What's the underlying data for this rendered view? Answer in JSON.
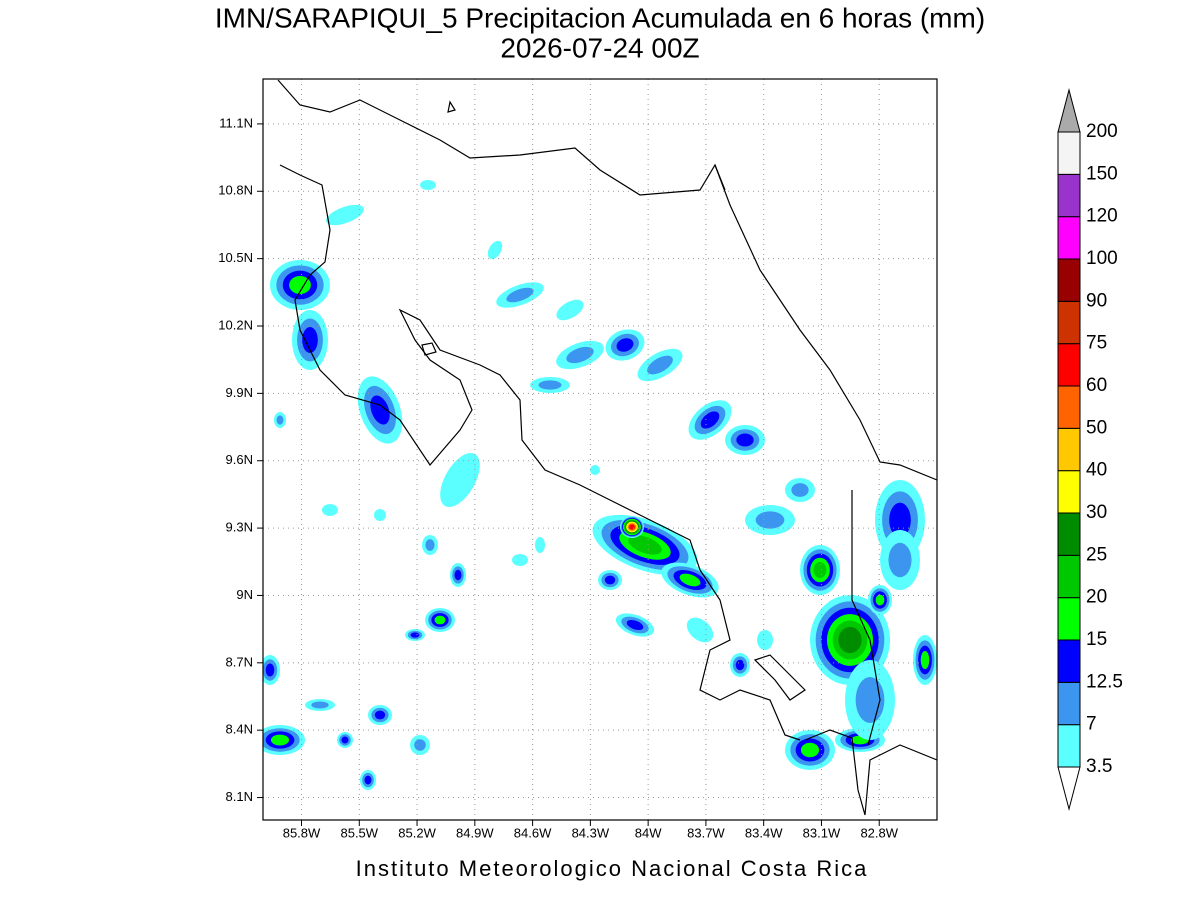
{
  "map": {
    "title": "IMN/SARAPIQUI_5 Precipitacion Acumulada en 6 horas (mm)",
    "subtitle": "2026-07-24 00Z",
    "credit": "Instituto Meteorologico Nacional Costa Rica",
    "lon_range": [
      -86.0,
      -82.5
    ],
    "lat_range": [
      8.0,
      11.3
    ],
    "lat_ticks": [
      {
        "value": 8.1,
        "label": "8.1N"
      },
      {
        "value": 8.4,
        "label": "8.4N"
      },
      {
        "value": 8.7,
        "label": "8.7N"
      },
      {
        "value": 9.0,
        "label": "9N"
      },
      {
        "value": 9.3,
        "label": "9.3N"
      },
      {
        "value": 9.6,
        "label": "9.6N"
      },
      {
        "value": 9.9,
        "label": "9.9N"
      },
      {
        "value": 10.2,
        "label": "10.2N"
      },
      {
        "value": 10.5,
        "label": "10.5N"
      },
      {
        "value": 10.8,
        "label": "10.8N"
      },
      {
        "value": 11.1,
        "label": "11.1N"
      }
    ],
    "lon_ticks": [
      {
        "value": -85.8,
        "label": "85.8W"
      },
      {
        "value": -85.5,
        "label": "85.5W"
      },
      {
        "value": -85.2,
        "label": "85.2W"
      },
      {
        "value": -84.9,
        "label": "84.9W"
      },
      {
        "value": -84.6,
        "label": "84.6W"
      },
      {
        "value": -84.3,
        "label": "84.3W"
      },
      {
        "value": -84.0,
        "label": "84W"
      },
      {
        "value": -83.7,
        "label": "83.7W"
      },
      {
        "value": -83.4,
        "label": "83.4W"
      },
      {
        "value": -83.1,
        "label": "83.1W"
      },
      {
        "value": -82.8,
        "label": "82.8W"
      }
    ],
    "grid": true,
    "colorbar": {
      "levels": [
        3.5,
        7,
        12.5,
        15,
        20,
        25,
        30,
        40,
        50,
        60,
        75,
        90,
        100,
        120,
        150,
        200
      ],
      "colors": [
        "#5cffff",
        "#3c96f0",
        "#0000ff",
        "#00ff00",
        "#00c800",
        "#008c00",
        "#ffff00",
        "#ffc800",
        "#ff6400",
        "#ff0000",
        "#cc3300",
        "#990000",
        "#ff00ff",
        "#9933cc",
        "#f4f4f4"
      ],
      "under_color": "#ffffff",
      "over_color": "#aaaaaa"
    }
  }
}
